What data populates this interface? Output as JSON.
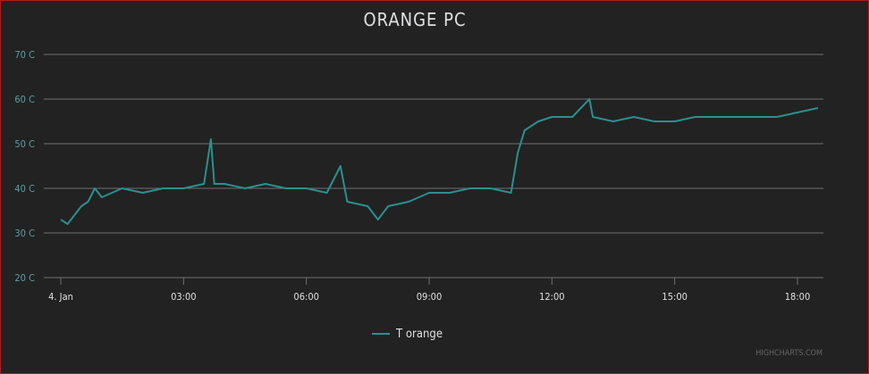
{
  "chart_data": {
    "type": "line",
    "title": "ORANGE PC",
    "xlabel": "",
    "ylabel": "",
    "ylim": [
      20,
      70
    ],
    "y_ticks": [
      20,
      30,
      40,
      50,
      60,
      70
    ],
    "y_unit": "C",
    "x_range_hours": [
      0,
      18.5
    ],
    "x_tick_labels": [
      "4. Jan",
      "03:00",
      "06:00",
      "09:00",
      "12:00",
      "15:00",
      "18:00"
    ],
    "grid": true,
    "legend_position": "bottom-center",
    "series": [
      {
        "name": "T orange",
        "color": "#2b908f",
        "points": [
          [
            "00:00",
            33
          ],
          [
            "00:10",
            32
          ],
          [
            "00:20",
            34
          ],
          [
            "00:30",
            36
          ],
          [
            "00:40",
            37
          ],
          [
            "00:50",
            40
          ],
          [
            "01:00",
            38
          ],
          [
            "01:15",
            39
          ],
          [
            "01:30",
            40
          ],
          [
            "02:00",
            39
          ],
          [
            "02:30",
            40
          ],
          [
            "03:00",
            40
          ],
          [
            "03:30",
            41
          ],
          [
            "03:40",
            51
          ],
          [
            "03:45",
            41
          ],
          [
            "04:00",
            41
          ],
          [
            "04:30",
            40
          ],
          [
            "05:00",
            41
          ],
          [
            "05:30",
            40
          ],
          [
            "06:00",
            40
          ],
          [
            "06:30",
            39
          ],
          [
            "06:50",
            45
          ],
          [
            "07:00",
            37
          ],
          [
            "07:30",
            36
          ],
          [
            "07:45",
            33
          ],
          [
            "08:00",
            36
          ],
          [
            "08:30",
            37
          ],
          [
            "09:00",
            39
          ],
          [
            "09:30",
            39
          ],
          [
            "10:00",
            40
          ],
          [
            "10:30",
            40
          ],
          [
            "11:00",
            39
          ],
          [
            "11:10",
            48
          ],
          [
            "11:20",
            53
          ],
          [
            "11:40",
            55
          ],
          [
            "12:00",
            56
          ],
          [
            "12:30",
            56
          ],
          [
            "12:55",
            60
          ],
          [
            "13:00",
            56
          ],
          [
            "13:30",
            55
          ],
          [
            "14:00",
            56
          ],
          [
            "14:30",
            55
          ],
          [
            "15:00",
            55
          ],
          [
            "15:30",
            56
          ],
          [
            "16:00",
            56
          ],
          [
            "16:30",
            56
          ],
          [
            "17:00",
            56
          ],
          [
            "17:30",
            56
          ],
          [
            "18:00",
            57
          ],
          [
            "18:30",
            58
          ]
        ]
      }
    ]
  },
  "credits": "HIGHCHARTS.COM"
}
